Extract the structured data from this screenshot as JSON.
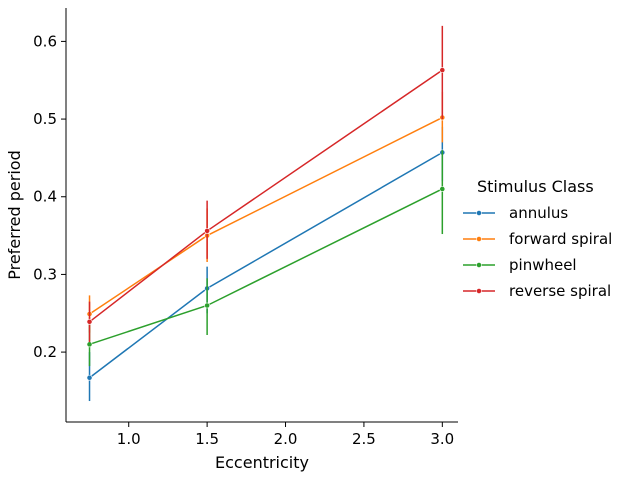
{
  "chart_data": {
    "type": "line",
    "xlabel": "Eccentricity",
    "ylabel": "Preferred period",
    "x": [
      0.75,
      1.5,
      3.0
    ],
    "xlim": [
      0.6,
      3.1
    ],
    "ylim": [
      0.11,
      0.643
    ],
    "xticks": [
      1.0,
      1.5,
      2.0,
      2.5,
      3.0
    ],
    "xtick_labels": [
      "1.0",
      "1.5",
      "2.0",
      "2.5",
      "3.0"
    ],
    "yticks": [
      0.2,
      0.3,
      0.4,
      0.5,
      0.6
    ],
    "ytick_labels": [
      "0.2",
      "0.3",
      "0.4",
      "0.5",
      "0.6"
    ],
    "grid": false,
    "legend": {
      "title": "Stimulus Class",
      "position": "right"
    },
    "series": [
      {
        "name": "annulus",
        "color": "#1f77b4",
        "values": [
          0.167,
          0.282,
          0.457
        ],
        "err_low": [
          0.137,
          0.25,
          0.42
        ],
        "err_high": [
          0.2,
          0.31,
          0.49
        ]
      },
      {
        "name": "forward spiral",
        "color": "#ff7f0e",
        "values": [
          0.249,
          0.35,
          0.502
        ],
        "err_low": [
          0.225,
          0.316,
          0.47
        ],
        "err_high": [
          0.273,
          0.385,
          0.535
        ]
      },
      {
        "name": "pinwheel",
        "color": "#2ca02c",
        "values": [
          0.21,
          0.26,
          0.41
        ],
        "err_low": [
          0.182,
          0.222,
          0.352
        ],
        "err_high": [
          0.238,
          0.295,
          0.46
        ]
      },
      {
        "name": "reverse spiral",
        "color": "#d62728",
        "values": [
          0.239,
          0.356,
          0.563
        ],
        "err_low": [
          0.213,
          0.32,
          0.5
        ],
        "err_high": [
          0.265,
          0.395,
          0.62
        ]
      }
    ]
  }
}
